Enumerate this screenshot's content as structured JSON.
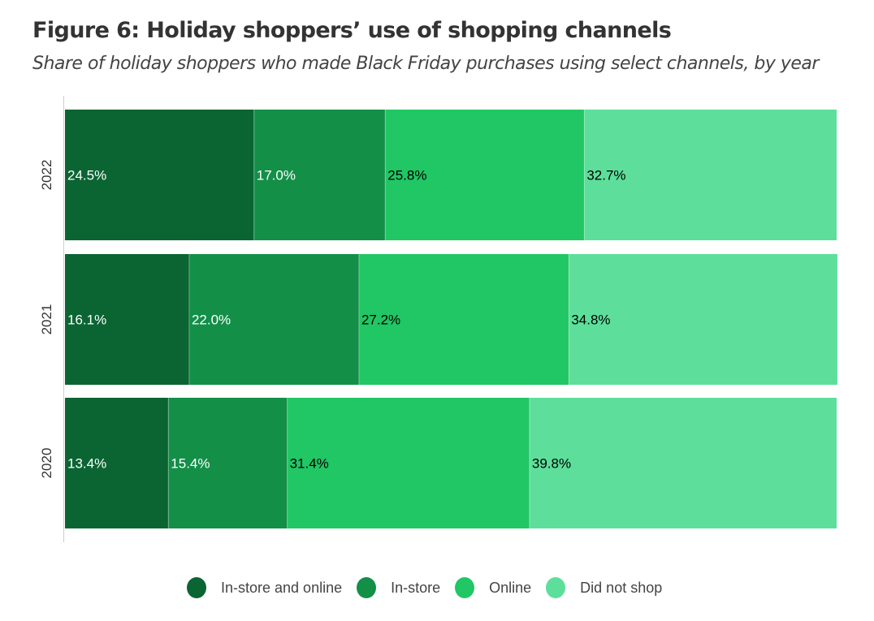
{
  "chart_data": {
    "type": "bar",
    "orientation": "horizontal-stacked",
    "title": "Figure 6: Holiday shoppers’ use of shopping channels",
    "subtitle": "Share of holiday shoppers who made Black Friday purchases using select channels, by year",
    "categories": [
      "2022",
      "2021",
      "2020"
    ],
    "series": [
      {
        "name": "In-store and online",
        "color": "#0b6533",
        "label_color": "#ffffff",
        "values": [
          24.5,
          16.1,
          13.4
        ],
        "labels": [
          "24.5%",
          "16.1%",
          "13.4%"
        ]
      },
      {
        "name": "In-store",
        "color": "#138f48",
        "label_color": "#ffffff",
        "values": [
          17.0,
          22.0,
          15.4
        ],
        "labels": [
          "17.0%",
          "22.0%",
          "15.4%"
        ]
      },
      {
        "name": "Online",
        "color": "#20c764",
        "label_color": "#000000",
        "values": [
          25.8,
          27.2,
          31.4
        ],
        "labels": [
          "25.8%",
          "27.2%",
          "31.4%"
        ]
      },
      {
        "name": "Did not shop",
        "color": "#5ddf9b",
        "label_color": "#000000",
        "values": [
          32.7,
          34.8,
          39.8
        ],
        "labels": [
          "32.7%",
          "34.8%",
          "39.8%"
        ]
      }
    ],
    "xlim": [
      0,
      100
    ],
    "legend": "bottom-center",
    "grid": false
  }
}
